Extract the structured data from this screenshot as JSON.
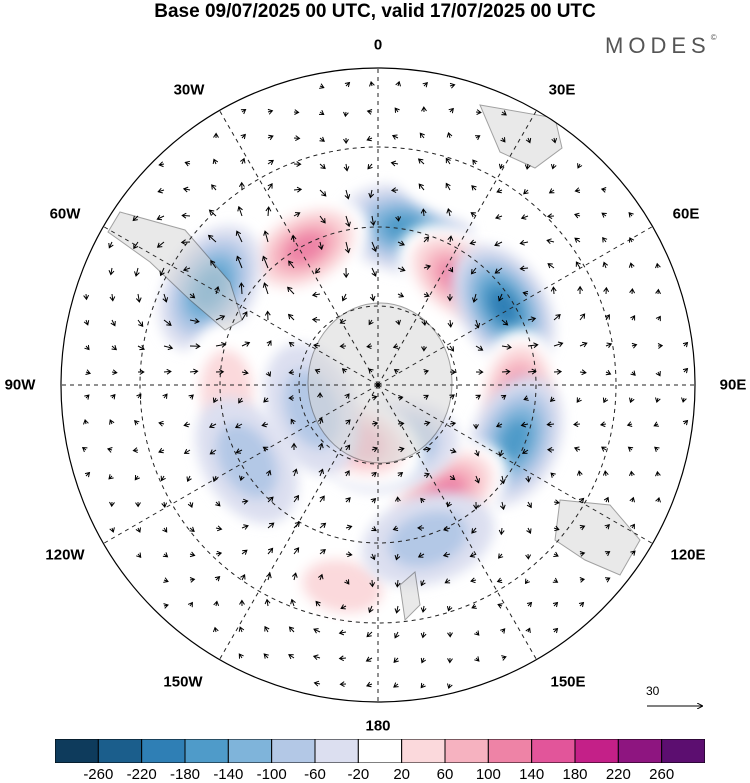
{
  "title": "Base 09/07/2025 00 UTC, valid 17/07/2025 00 UTC",
  "brand": "MODES",
  "brand_mark": "©",
  "longitude_labels": [
    {
      "id": "0",
      "text": "0"
    },
    {
      "id": "30e",
      "text": "30E"
    },
    {
      "id": "60e",
      "text": "60E"
    },
    {
      "id": "90e",
      "text": "90E"
    },
    {
      "id": "120e",
      "text": "120E"
    },
    {
      "id": "150e",
      "text": "150E"
    },
    {
      "id": "180",
      "text": "180"
    },
    {
      "id": "150w",
      "text": "150W"
    },
    {
      "id": "120w",
      "text": "120W"
    },
    {
      "id": "90w",
      "text": "90W"
    },
    {
      "id": "60w",
      "text": "60W"
    },
    {
      "id": "30w",
      "text": "30W"
    }
  ],
  "reference_vector": "30",
  "colorbar": {
    "colors": [
      "#0e3b5c",
      "#1b5e8c",
      "#2f7fb5",
      "#4f9bc9",
      "#7fb4da",
      "#b3c8e6",
      "#dcdff0",
      "#ffffff",
      "#fbd9dc",
      "#f6b2c0",
      "#ee83a6",
      "#e2559a",
      "#c42088",
      "#8e1580",
      "#5c0e70"
    ],
    "ticks": [
      "-260",
      "-220",
      "-180",
      "-140",
      "-100",
      "-60",
      "-20",
      "20",
      "60",
      "100",
      "140",
      "180",
      "220",
      "260"
    ]
  },
  "anomaly_centers": [
    {
      "lon": 10,
      "colat": 45,
      "value": -150
    },
    {
      "lon": -28,
      "colat": 44,
      "value": 150
    },
    {
      "lon": 37,
      "colat": 38,
      "value": 150
    },
    {
      "lon": 58,
      "colat": 42,
      "value": -200
    },
    {
      "lon": 95,
      "colat": 40,
      "value": 160
    },
    {
      "lon": 112,
      "colat": 42,
      "value": -140
    },
    {
      "lon": 148,
      "colat": 36,
      "value": 150
    },
    {
      "lon": 168,
      "colat": 18,
      "value": -110
    },
    {
      "lon": -160,
      "colat": 17,
      "value": 130
    },
    {
      "lon": -60,
      "colat": 55,
      "value": -160
    },
    {
      "lon": -92,
      "colat": 43,
      "value": 80
    },
    {
      "lon": -120,
      "colat": 43,
      "value": -70
    },
    {
      "lon": -170,
      "colat": 58,
      "value": 90
    },
    {
      "lon": 162,
      "colat": 46,
      "value": -60
    },
    {
      "lon": -110,
      "colat": 20,
      "value": -60
    },
    {
      "lon": 20,
      "colat": 64,
      "value": 50
    }
  ]
}
